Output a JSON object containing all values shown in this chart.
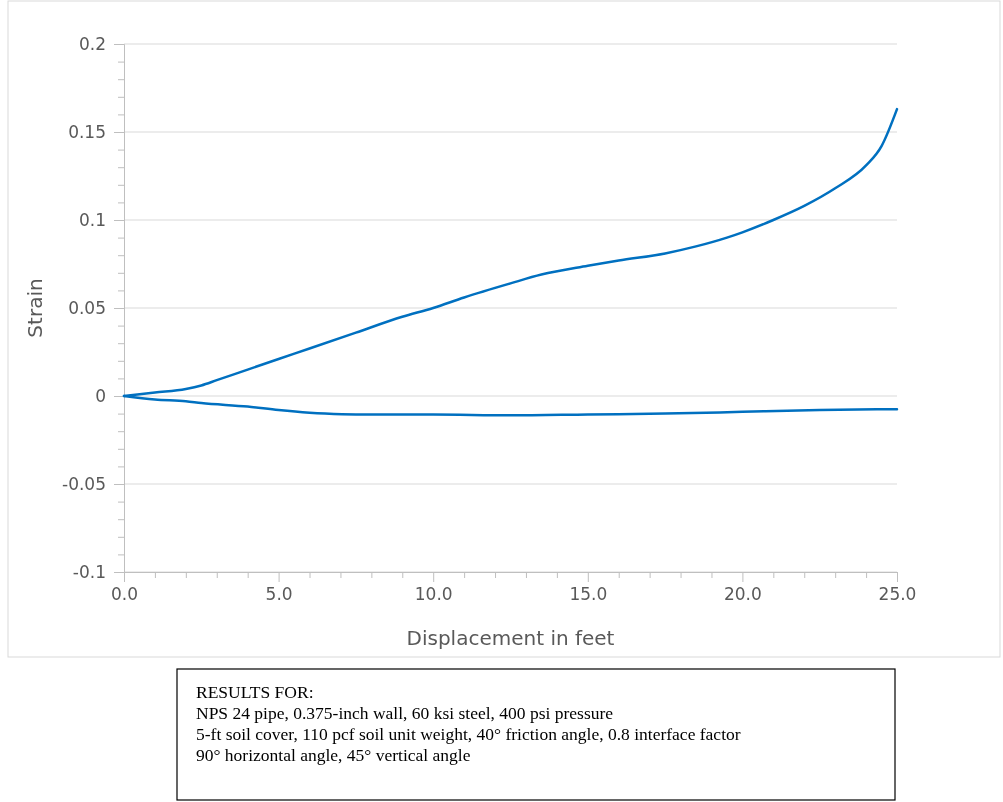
{
  "chart_data": {
    "type": "line",
    "xlabel": "Displacement in feet",
    "ylabel": "Strain",
    "xlim": [
      0,
      25
    ],
    "ylim": [
      -0.1,
      0.2
    ],
    "xticks": [
      {
        "value": 0,
        "label": "0.0"
      },
      {
        "value": 1,
        "label": null
      },
      {
        "value": 2,
        "label": null
      },
      {
        "value": 3,
        "label": null
      },
      {
        "value": 4,
        "label": null
      },
      {
        "value": 5,
        "label": "5.0"
      },
      {
        "value": 6,
        "label": null
      },
      {
        "value": 7,
        "label": null
      },
      {
        "value": 8,
        "label": null
      },
      {
        "value": 9,
        "label": null
      },
      {
        "value": 10,
        "label": "10.0"
      },
      {
        "value": 11,
        "label": null
      },
      {
        "value": 12,
        "label": null
      },
      {
        "value": 13,
        "label": null
      },
      {
        "value": 14,
        "label": null
      },
      {
        "value": 15,
        "label": "15.0"
      },
      {
        "value": 16,
        "label": null
      },
      {
        "value": 17,
        "label": null
      },
      {
        "value": 18,
        "label": null
      },
      {
        "value": 19,
        "label": null
      },
      {
        "value": 20,
        "label": "20.0"
      },
      {
        "value": 21,
        "label": null
      },
      {
        "value": 22,
        "label": null
      },
      {
        "value": 23,
        "label": null
      },
      {
        "value": 24,
        "label": null
      },
      {
        "value": 25,
        "label": "25.0"
      }
    ],
    "yticks": [
      -0.1,
      {
        "value": -0.09,
        "label": null
      },
      {
        "value": -0.08,
        "label": null
      },
      {
        "value": -0.07,
        "label": null
      },
      {
        "value": -0.06,
        "label": null
      },
      -0.05,
      {
        "value": -0.04,
        "label": null
      },
      {
        "value": -0.03,
        "label": null
      },
      {
        "value": -0.02,
        "label": null
      },
      {
        "value": -0.01,
        "label": null
      },
      0,
      {
        "value": 0.01,
        "label": null
      },
      {
        "value": 0.02,
        "label": null
      },
      {
        "value": 0.03,
        "label": null
      },
      {
        "value": 0.04,
        "label": null
      },
      0.05,
      {
        "value": 0.06,
        "label": null
      },
      {
        "value": 0.07,
        "label": null
      },
      {
        "value": 0.08,
        "label": null
      },
      {
        "value": 0.09,
        "label": null
      },
      0.1,
      {
        "value": 0.11,
        "label": null
      },
      {
        "value": 0.12,
        "label": null
      },
      {
        "value": 0.13,
        "label": null
      },
      {
        "value": 0.14,
        "label": null
      },
      0.15,
      {
        "value": 0.16,
        "label": null
      },
      {
        "value": 0.17,
        "label": null
      },
      {
        "value": 0.18,
        "label": null
      },
      {
        "value": 0.19,
        "label": null
      },
      0.2
    ],
    "grid": "y",
    "marker": "none",
    "line_style": "solid",
    "series": [
      {
        "color": "#0070c0",
        "x": [
          0,
          1,
          2,
          2.5,
          3,
          4,
          5,
          6,
          7.5,
          9,
          10,
          11,
          12.5,
          13.5,
          15,
          16,
          17.5,
          18.5,
          19.5,
          20,
          21,
          22,
          23,
          24,
          24.5,
          25
        ],
        "values": [
          0,
          0.002,
          0.004,
          0.006,
          0.009,
          0.015,
          0.021,
          0.027,
          0.036,
          0.045,
          0.05,
          0.056,
          0.064,
          0.069,
          0.074,
          0.077,
          0.081,
          0.085,
          0.09,
          0.093,
          0.1,
          0.108,
          0.118,
          0.131,
          0.142,
          0.163
        ]
      },
      {
        "color": "#0070c0",
        "x": [
          0,
          1,
          2,
          2.5,
          4,
          5,
          6,
          6.5,
          7.5,
          10,
          12.5,
          15,
          17.5,
          20,
          22.5,
          25
        ],
        "values": [
          0,
          -0.002,
          -0.003,
          -0.004,
          -0.006,
          -0.008,
          -0.0095,
          -0.01,
          -0.0105,
          -0.0105,
          -0.011,
          -0.0105,
          -0.01,
          -0.009,
          -0.008,
          -0.0075
        ]
      }
    ],
    "annotations": [
      "RESULTS FOR:",
      "NPS 24 pipe, 0.375-inch wall, 60 ksi steel, 400 psi pressure",
      "5-ft soil cover, 110 pcf soil unit weight, 40° friction angle, 0.8 interface factor",
      "90° horizontal angle, 45° vertical angle"
    ]
  }
}
